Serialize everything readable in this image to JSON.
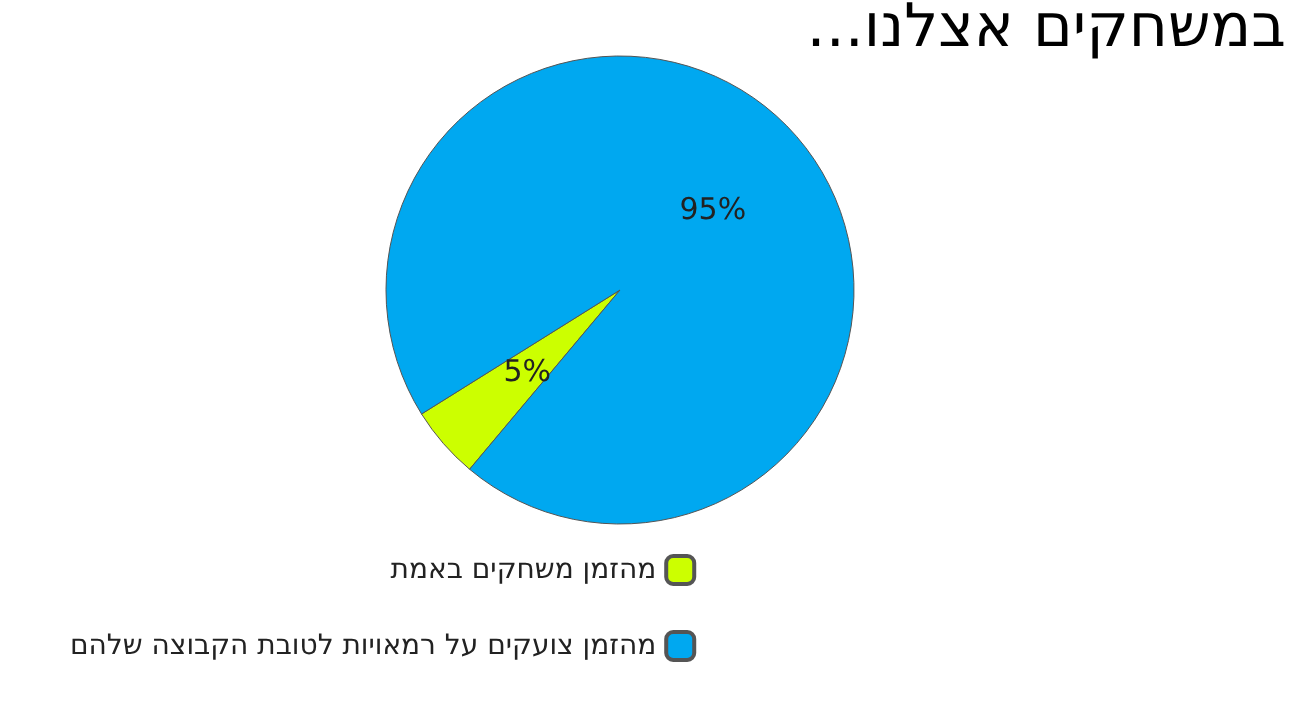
{
  "chart_data": {
    "type": "pie",
    "title": "במשחקים אצלנו...",
    "categories": [
      "מהזמן משחקים באמת",
      "מהזמן צועקים על רמאויות לטובת הקבוצה שלהם"
    ],
    "values": [
      5,
      95
    ],
    "value_labels": [
      "5%",
      "95%"
    ],
    "colors": [
      "#ccff00",
      "#00a8f0"
    ],
    "legend": "bottom"
  }
}
